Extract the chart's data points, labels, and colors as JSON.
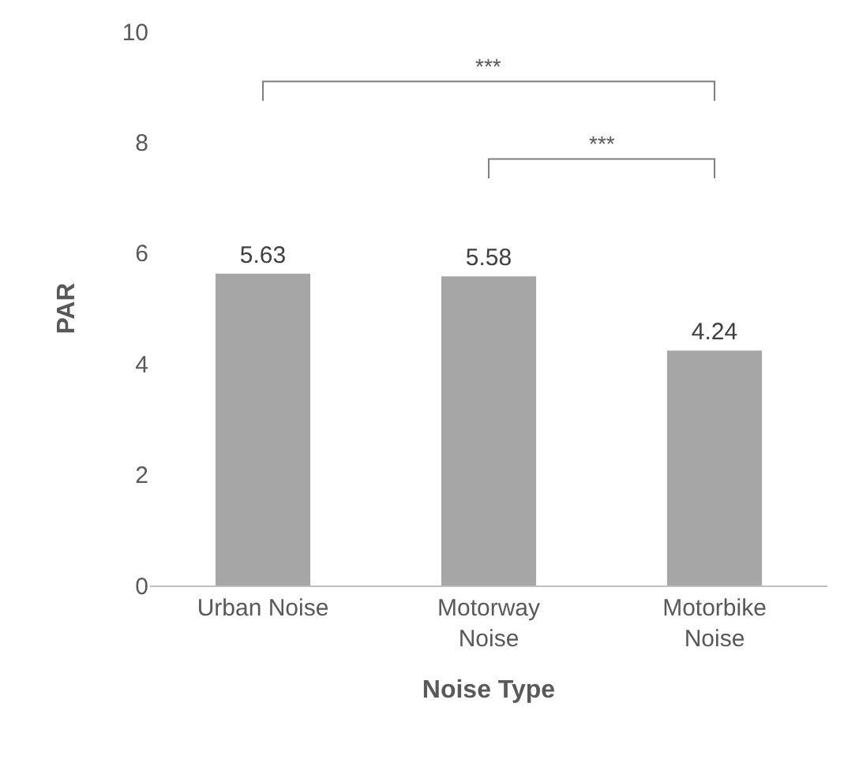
{
  "chart_data": {
    "type": "bar",
    "xlabel": "Noise Type",
    "ylabel": "PAR",
    "categories": [
      "Urban Noise",
      "Motorway Noise",
      "Motorbike Noise"
    ],
    "values": [
      5.63,
      5.58,
      4.24
    ],
    "color": "#a6a6a6",
    "ylim": [
      0,
      10
    ],
    "yticks": [
      0,
      2,
      4,
      6,
      8,
      10
    ],
    "grid": false,
    "data_labels": true,
    "legend": false,
    "annotations": [
      "***",
      "***"
    ]
  }
}
